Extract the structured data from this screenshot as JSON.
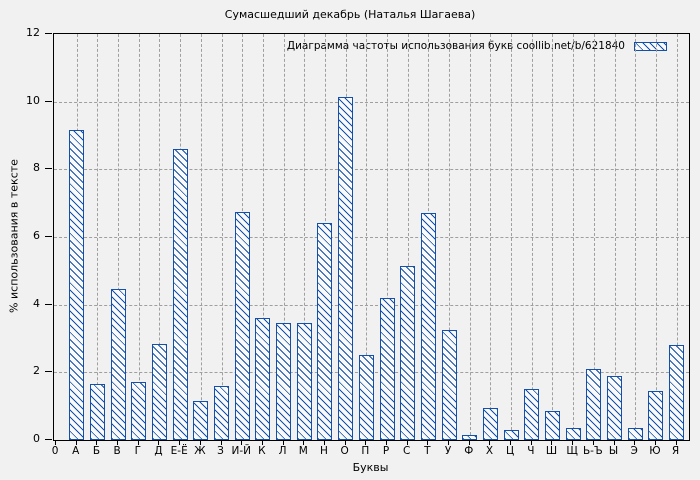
{
  "colors": {
    "bar_outline": "#1450a8",
    "bar_fill": "#fafafa",
    "grid": "#9f9f9f",
    "axis": "#000000",
    "background": "#f1f1f1"
  },
  "legend": {
    "label": "Диаграмма частоты использования букв coollib.net/b/621840",
    "swatch_icon": "hatched-bar-swatch"
  },
  "chart_data": {
    "type": "bar",
    "title": "Сумасшедший декабрь (Наталья Шагаева)",
    "xlabel": "Буквы",
    "ylabel": "% использования в тексте",
    "ylim": [
      0,
      12
    ],
    "yticks": [
      0,
      2,
      4,
      6,
      8,
      10,
      12
    ],
    "grid": true,
    "grid_style": "dashed",
    "legend_position": "top-right-inside",
    "hatch": "backslash-diagonal",
    "categories": [
      "0",
      "А",
      "Б",
      "В",
      "Г",
      "Д",
      "Е-Ё",
      "Ж",
      "З",
      "И-Й",
      "К",
      "Л",
      "М",
      "Н",
      "О",
      "П",
      "Р",
      "С",
      "Т",
      "У",
      "Ф",
      "Х",
      "Ц",
      "Ч",
      "Ш",
      "Щ",
      "Ь-Ъ",
      "Ы",
      "Э",
      "Ю",
      "Я"
    ],
    "values": [
      0,
      9.15,
      1.65,
      4.45,
      1.7,
      2.85,
      8.6,
      1.15,
      1.6,
      6.75,
      3.6,
      3.45,
      3.45,
      6.4,
      10.15,
      2.5,
      4.2,
      5.15,
      6.7,
      3.25,
      0.15,
      0.95,
      0.3,
      1.5,
      0.85,
      0.35,
      2.1,
      1.9,
      0.35,
      1.45,
      2.8
    ]
  }
}
